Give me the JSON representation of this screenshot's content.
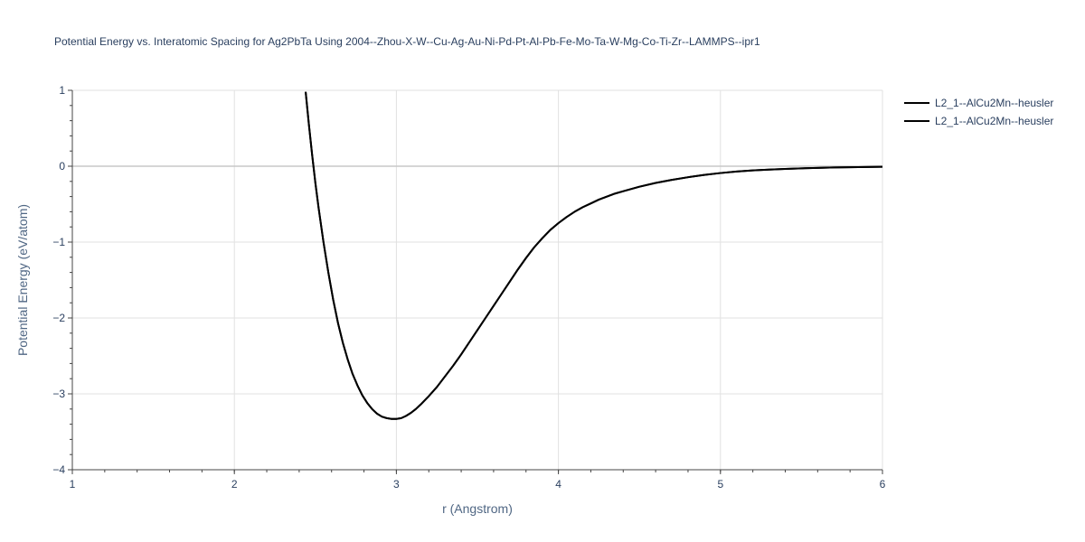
{
  "chart_data": {
    "type": "line",
    "title": "Potential Energy vs. Interatomic Spacing for Ag2PbTa Using 2004--Zhou-X-W--Cu-Ag-Au-Ni-Pd-Pt-Al-Pb-Fe-Mo-Ta-W-Mg-Co-Ti-Zr--LAMMPS--ipr1",
    "xlabel": "r (Angstrom)",
    "ylabel": "Potential Energy (eV/atom)",
    "xlim": [
      1,
      6
    ],
    "ylim": [
      -4,
      1
    ],
    "xticks": [
      1,
      2,
      3,
      4,
      5,
      6
    ],
    "xtick_labels": [
      "1",
      "2",
      "3",
      "4",
      "5",
      "6"
    ],
    "yticks": [
      -4,
      -3,
      -2,
      -1,
      0,
      1
    ],
    "ytick_labels": [
      "−4",
      "−3",
      "−2",
      "−1",
      "0",
      "1"
    ],
    "grid": true,
    "legend_position": "top-right",
    "series": [
      {
        "name": "L2_1--AlCu2Mn--heusler",
        "color": "#000000",
        "x": [
          2.44,
          2.46,
          2.48,
          2.5,
          2.52,
          2.55,
          2.58,
          2.61,
          2.64,
          2.67,
          2.7,
          2.73,
          2.76,
          2.79,
          2.82,
          2.85,
          2.88,
          2.91,
          2.94,
          2.97,
          3.0,
          3.03,
          3.06,
          3.09,
          3.12,
          3.15,
          3.2,
          3.25,
          3.3,
          3.35,
          3.4,
          3.45,
          3.5,
          3.55,
          3.6,
          3.65,
          3.7,
          3.75,
          3.8,
          3.85,
          3.9,
          3.95,
          4.0,
          4.05,
          4.1,
          4.15,
          4.2,
          4.25,
          4.3,
          4.35,
          4.4,
          4.5,
          4.6,
          4.7,
          4.8,
          4.9,
          5.0,
          5.1,
          5.2,
          5.3,
          5.4,
          5.5,
          5.6,
          5.7,
          5.8,
          5.9,
          6.0
        ],
        "y": [
          0.98,
          0.55,
          0.15,
          -0.22,
          -0.55,
          -1.0,
          -1.4,
          -1.76,
          -2.07,
          -2.33,
          -2.55,
          -2.74,
          -2.89,
          -3.02,
          -3.12,
          -3.2,
          -3.26,
          -3.3,
          -3.32,
          -3.33,
          -3.33,
          -3.32,
          -3.29,
          -3.25,
          -3.2,
          -3.14,
          -3.03,
          -2.91,
          -2.77,
          -2.63,
          -2.48,
          -2.32,
          -2.16,
          -2.0,
          -1.84,
          -1.68,
          -1.52,
          -1.36,
          -1.21,
          -1.07,
          -0.95,
          -0.84,
          -0.75,
          -0.67,
          -0.6,
          -0.54,
          -0.49,
          -0.44,
          -0.4,
          -0.36,
          -0.33,
          -0.27,
          -0.22,
          -0.18,
          -0.145,
          -0.115,
          -0.09,
          -0.07,
          -0.055,
          -0.045,
          -0.035,
          -0.028,
          -0.022,
          -0.017,
          -0.013,
          -0.01,
          -0.008
        ]
      },
      {
        "name": "L2_1--AlCu2Mn--heusler",
        "color": "#000000",
        "x": [
          2.44,
          2.46,
          2.48,
          2.5,
          2.52,
          2.55,
          2.58,
          2.61,
          2.64,
          2.67,
          2.7,
          2.73,
          2.76,
          2.79,
          2.82,
          2.85,
          2.88,
          2.91,
          2.94,
          2.97,
          3.0,
          3.03,
          3.06,
          3.09,
          3.12,
          3.15,
          3.2,
          3.25,
          3.3,
          3.35,
          3.4,
          3.45,
          3.5,
          3.55,
          3.6,
          3.65,
          3.7,
          3.75,
          3.8,
          3.85,
          3.9,
          3.95,
          4.0,
          4.05,
          4.1,
          4.15,
          4.2,
          4.25,
          4.3,
          4.35,
          4.4,
          4.5,
          4.6,
          4.7,
          4.8,
          4.9,
          5.0,
          5.1,
          5.2,
          5.3,
          5.4,
          5.5,
          5.6,
          5.7,
          5.8,
          5.9,
          6.0
        ],
        "y": [
          0.98,
          0.55,
          0.15,
          -0.22,
          -0.55,
          -1.0,
          -1.4,
          -1.76,
          -2.07,
          -2.33,
          -2.55,
          -2.74,
          -2.89,
          -3.02,
          -3.12,
          -3.2,
          -3.26,
          -3.3,
          -3.32,
          -3.33,
          -3.33,
          -3.32,
          -3.29,
          -3.25,
          -3.2,
          -3.14,
          -3.03,
          -2.91,
          -2.77,
          -2.63,
          -2.48,
          -2.32,
          -2.16,
          -2.0,
          -1.84,
          -1.68,
          -1.52,
          -1.36,
          -1.21,
          -1.07,
          -0.95,
          -0.84,
          -0.75,
          -0.67,
          -0.6,
          -0.54,
          -0.49,
          -0.44,
          -0.4,
          -0.36,
          -0.33,
          -0.27,
          -0.22,
          -0.18,
          -0.145,
          -0.115,
          -0.09,
          -0.07,
          -0.055,
          -0.045,
          -0.035,
          -0.028,
          -0.022,
          -0.017,
          -0.013,
          -0.01,
          -0.008
        ]
      }
    ]
  }
}
